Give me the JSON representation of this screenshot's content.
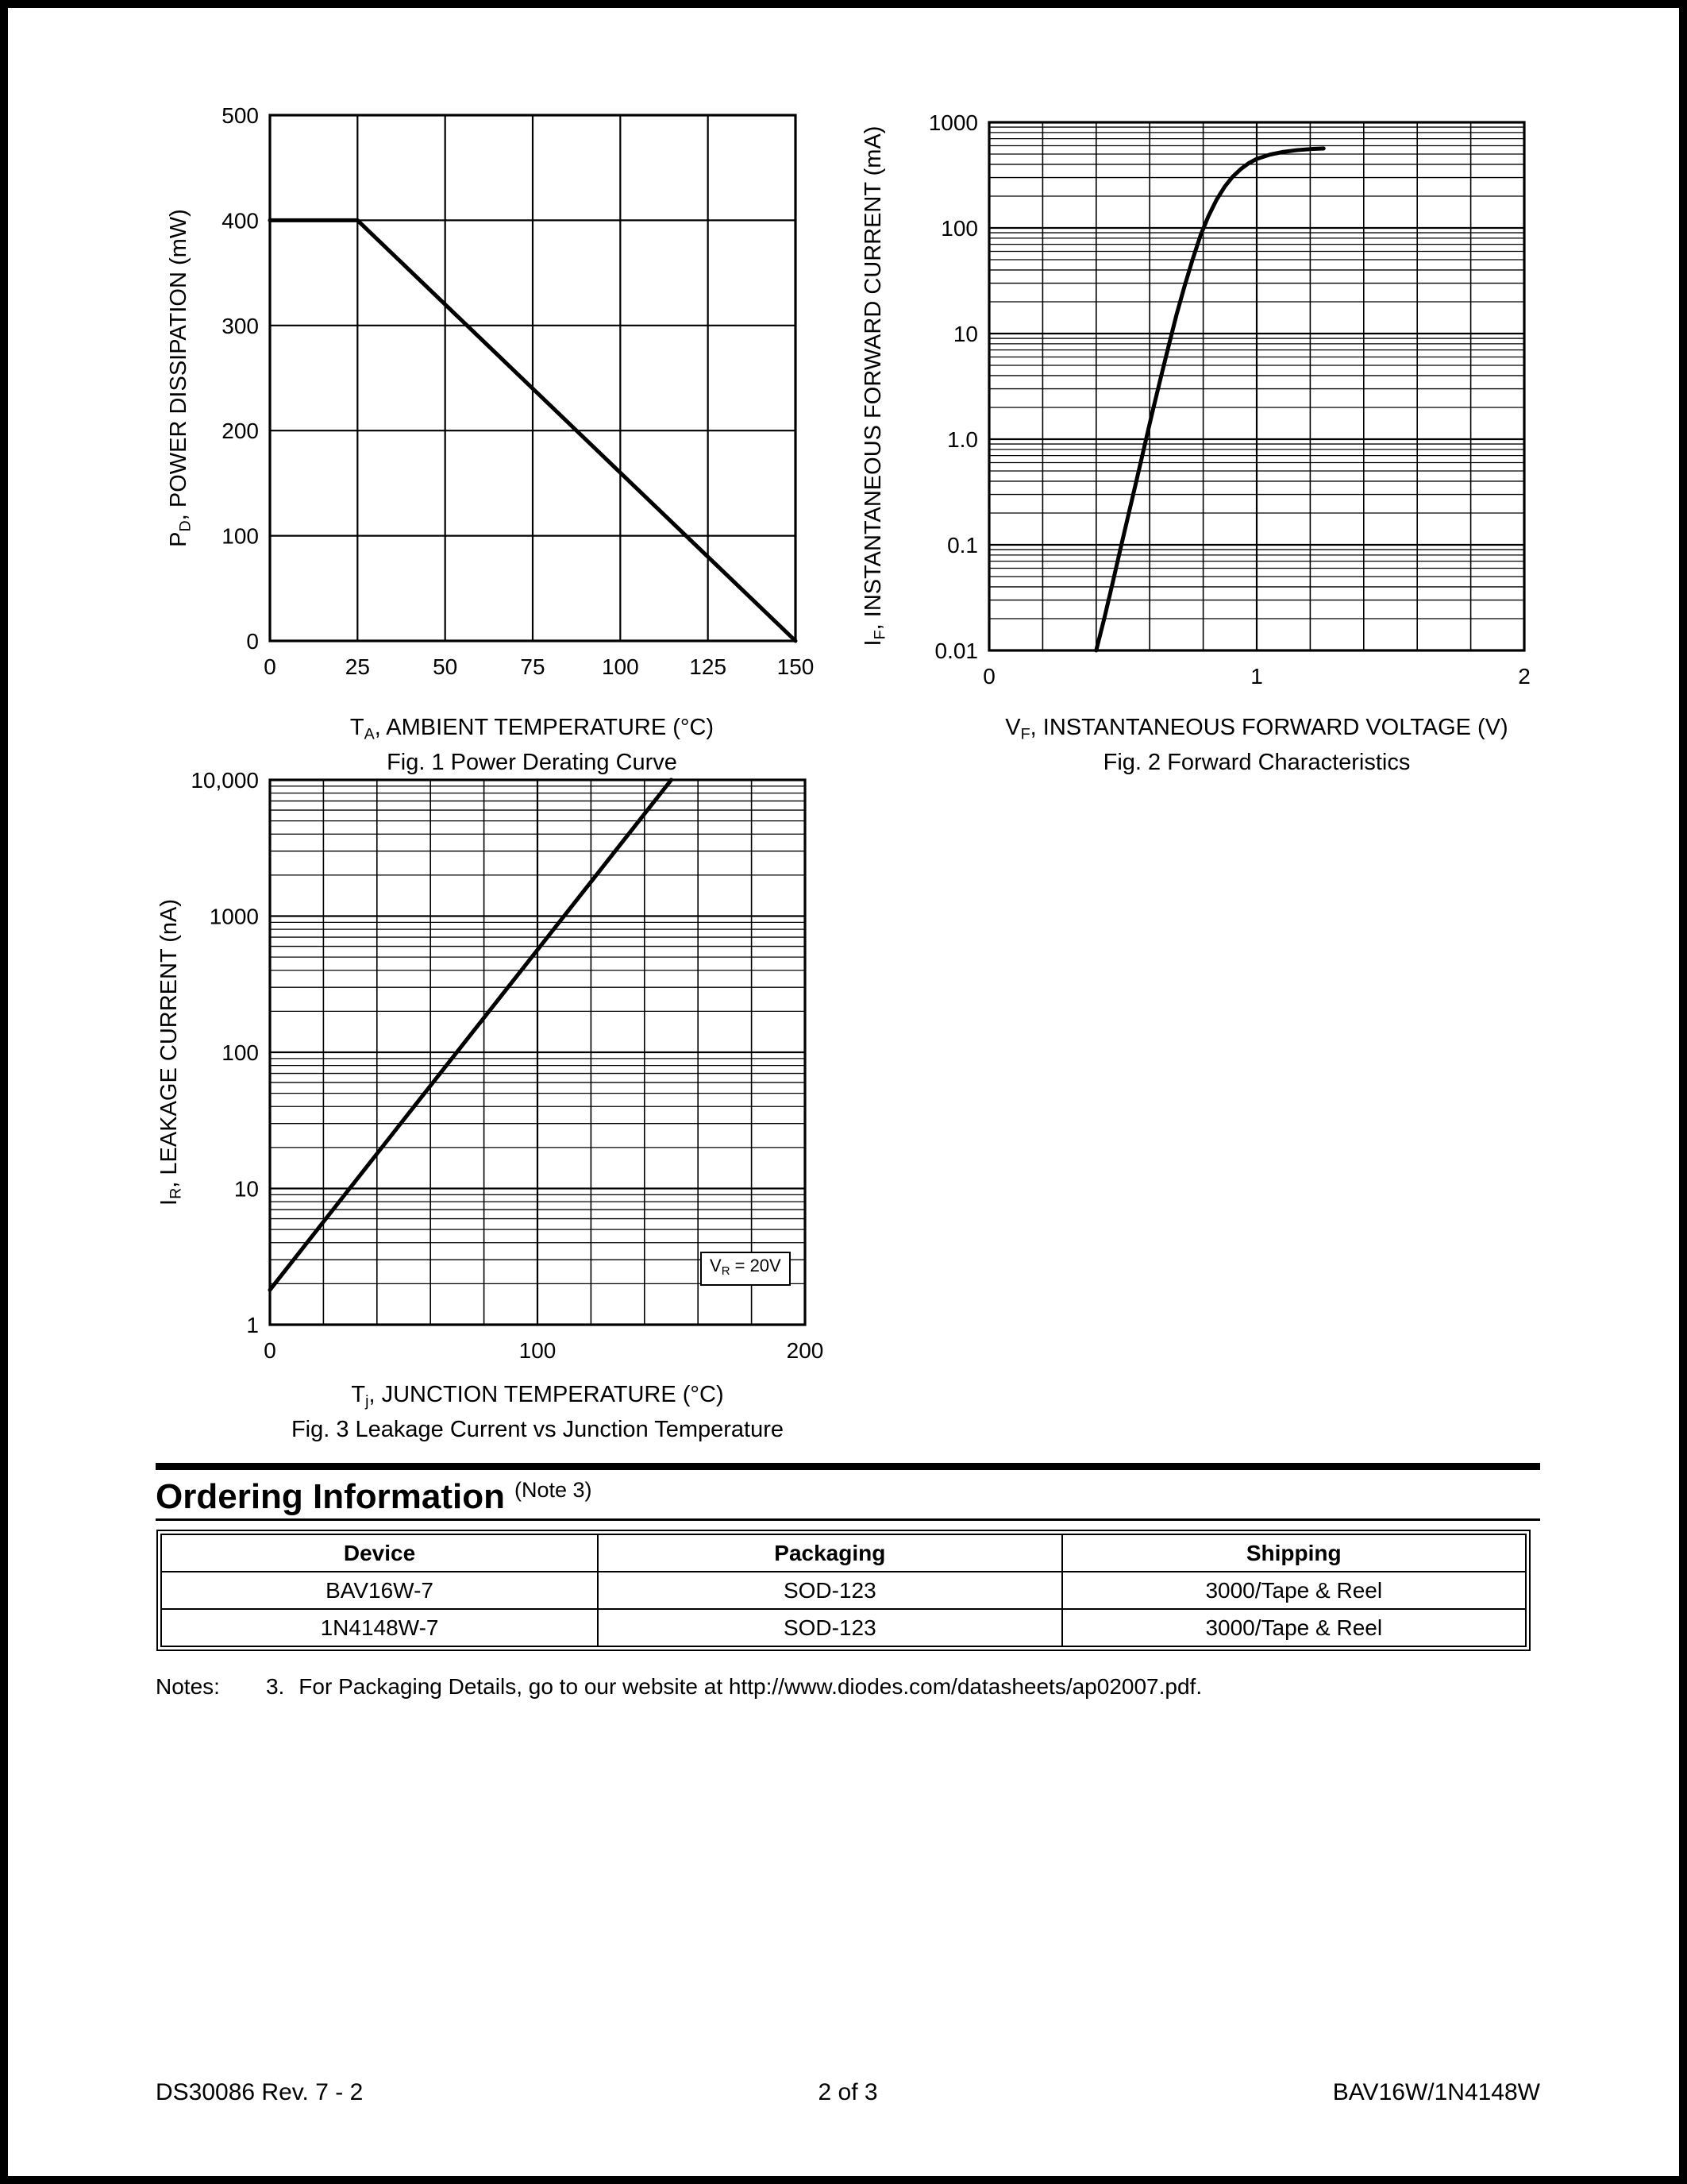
{
  "colors": {
    "ink": "#000000",
    "paper": "#ffffff"
  },
  "chart_data": [
    {
      "id": "fig1",
      "type": "line",
      "title": "Fig. 1  Power Derating Curve",
      "xlabel": {
        "pre": "T",
        "sub": "A",
        "post": ", AMBIENT TEMPERATURE (°C)"
      },
      "ylabel": {
        "pre": "P",
        "sub": "D",
        "post": ", POWER DISSIPATION (mW)"
      },
      "xlim": [
        0,
        150
      ],
      "ylim": [
        0,
        500
      ],
      "x_scale": "linear",
      "y_scale": "linear",
      "grid": true,
      "legend": "none",
      "xticks": {
        "values": [
          0,
          25,
          50,
          75,
          100,
          125,
          150
        ],
        "labels": [
          "0",
          "25",
          "50",
          "75",
          "100",
          "125",
          "150"
        ]
      },
      "yticks": {
        "values": [
          0,
          100,
          200,
          300,
          400,
          500
        ],
        "labels": [
          "0",
          "100",
          "200",
          "300",
          "400",
          "500"
        ]
      },
      "x_minor_step": null,
      "series": [
        {
          "name": "power-derating",
          "points": [
            [
              0,
              400
            ],
            [
              25,
              400
            ],
            [
              150,
              0
            ]
          ]
        }
      ]
    },
    {
      "id": "fig2",
      "type": "line",
      "title": "Fig. 2  Forward Characteristics",
      "xlabel": {
        "pre": "V",
        "sub": "F",
        "post": ", INSTANTANEOUS FORWARD VOLTAGE (V)"
      },
      "ylabel": {
        "pre": "I",
        "sub": "F",
        "post": ", INSTANTANEOUS FORWARD CURRENT (mA)"
      },
      "xlim": [
        0,
        2
      ],
      "ylim": [
        0.01,
        1000
      ],
      "x_scale": "linear",
      "y_scale": "log",
      "grid": true,
      "legend": "none",
      "xticks": {
        "values": [
          0,
          1,
          2
        ],
        "labels": [
          "0",
          "1",
          "2"
        ]
      },
      "yticks": {
        "values": [
          1000,
          100,
          10,
          1,
          0.1,
          0.01
        ],
        "labels": [
          "1000",
          "100",
          "10",
          "1.0",
          "0.1",
          "0.01"
        ]
      },
      "x_minor_step": 0.2,
      "series": [
        {
          "name": "forward-current",
          "points": [
            [
              0.4,
              0.01
            ],
            [
              0.43,
              0.02
            ],
            [
              0.46,
              0.042
            ],
            [
              0.49,
              0.09
            ],
            [
              0.52,
              0.19
            ],
            [
              0.55,
              0.4
            ],
            [
              0.58,
              0.85
            ],
            [
              0.61,
              1.8
            ],
            [
              0.64,
              3.7
            ],
            [
              0.67,
              7.5
            ],
            [
              0.7,
              15
            ],
            [
              0.73,
              28
            ],
            [
              0.76,
              50
            ],
            [
              0.79,
              85
            ],
            [
              0.82,
              130
            ],
            [
              0.85,
              185
            ],
            [
              0.88,
              245
            ],
            [
              0.91,
              305
            ],
            [
              0.94,
              360
            ],
            [
              0.97,
              410
            ],
            [
              1.0,
              450
            ],
            [
              1.05,
              495
            ],
            [
              1.1,
              525
            ],
            [
              1.15,
              545
            ],
            [
              1.2,
              558
            ],
            [
              1.25,
              565
            ]
          ]
        }
      ]
    },
    {
      "id": "fig3",
      "type": "line",
      "title": "Fig. 3  Leakage Current vs Junction Temperature",
      "xlabel": {
        "pre": "T",
        "sub": "j",
        "post": ", JUNCTION TEMPERATURE (°C)"
      },
      "ylabel": {
        "pre": "I",
        "sub": "R",
        "post": ", LEAKAGE CURRENT (nA)"
      },
      "xlim": [
        0,
        200
      ],
      "ylim": [
        1,
        10000
      ],
      "x_scale": "linear",
      "y_scale": "log",
      "grid": true,
      "legend": "none",
      "xticks": {
        "values": [
          0,
          100,
          200
        ],
        "labels": [
          "0",
          "100",
          "200"
        ]
      },
      "yticks": {
        "values": [
          10000,
          1000,
          100,
          10,
          1
        ],
        "labels": [
          "10,000",
          "1000",
          "100",
          "10",
          "1"
        ]
      },
      "x_minor_step": 20,
      "annotation": {
        "pre": "V",
        "sub": "R",
        "post": " = 20V"
      },
      "series": [
        {
          "name": "leakage-current",
          "points": [
            [
              0,
              1.8
            ],
            [
              50,
              32
            ],
            [
              100,
              565
            ],
            [
              150,
              10000
            ]
          ]
        }
      ]
    }
  ],
  "ordering": {
    "title": "Ordering Information",
    "note_ref": "(Note 3)",
    "table": {
      "headers": [
        "Device",
        "Packaging",
        "Shipping"
      ],
      "rows": [
        [
          "BAV16W-7",
          "SOD-123",
          "3000/Tape & Reel"
        ],
        [
          "1N4148W-7",
          "SOD-123",
          "3000/Tape & Reel"
        ]
      ]
    },
    "notes_label": "Notes:",
    "note_num": "3.",
    "note_pre": "For Packaging Details, go to our website at ",
    "note_url": "http://www.diodes.com/datasheets/ap02007.pdf",
    "note_end": "."
  },
  "footer": {
    "doc_number": "DS30086 Rev. 7 - 2",
    "page_number": "2 of 3",
    "part_number": "BAV16W/1N4148W"
  }
}
